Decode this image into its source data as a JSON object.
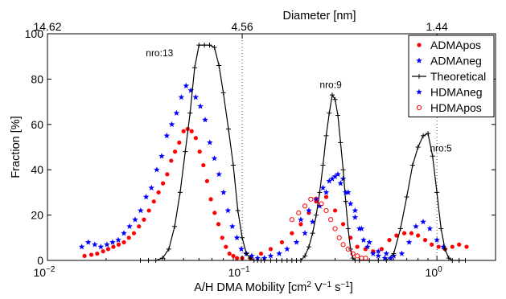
{
  "chart_data": {
    "type": "scatter",
    "x_scale": "log",
    "xlim": [
      0.01,
      2.0
    ],
    "ylim": [
      0,
      100
    ],
    "xlabel_main": "A/H DMA Mobility [cm",
    "xlabel_sup1": "2",
    "xlabel_mid1": " V",
    "xlabel_sup2": "−1",
    "xlabel_mid2": " s",
    "xlabel_sup3": "−1",
    "xlabel_end": "]",
    "ylabel": "Fraction [%]",
    "x2label": "Diameter [nm]",
    "y_ticks": [
      "0",
      "20",
      "40",
      "60",
      "80",
      "100"
    ],
    "x_ticks": [
      {
        "value": 0.01,
        "base": "10",
        "exp": "−2"
      },
      {
        "value": 0.1,
        "base": "10",
        "exp": "−1"
      },
      {
        "value": 1,
        "base": "10",
        "exp": "0"
      }
    ],
    "x2_ticks": [
      {
        "value": 0.01,
        "label": "14.62"
      },
      {
        "value": 0.1,
        "label": "4.56"
      },
      {
        "value": 1,
        "label": "1.44"
      }
    ],
    "grid_x": [
      0.1,
      1
    ],
    "annotations": [
      {
        "text": "nro:13",
        "x": 0.032,
        "y": 90
      },
      {
        "text": "nro:9",
        "x": 0.25,
        "y": 76
      },
      {
        "text": "nro:5",
        "x": 0.92,
        "y": 48
      }
    ],
    "legend_position": "top-right",
    "series": [
      {
        "name": "ADMApos",
        "color": "#ff0000",
        "marker": "dot",
        "x": [
          0.0155,
          0.0168,
          0.018,
          0.0193,
          0.0205,
          0.0218,
          0.0232,
          0.0247,
          0.0262,
          0.0278,
          0.0295,
          0.0313,
          0.0332,
          0.0352,
          0.0372,
          0.0392,
          0.0412,
          0.0432,
          0.0452,
          0.0475,
          0.05,
          0.0525,
          0.055,
          0.0578,
          0.0605,
          0.0632,
          0.066,
          0.069,
          0.0722,
          0.0755,
          0.079,
          0.0825,
          0.086,
          0.09,
          0.094,
          0.1,
          0.11,
          0.125,
          0.14,
          0.16,
          0.18,
          0.2,
          0.22,
          0.24,
          0.27,
          0.3,
          0.33,
          0.36,
          0.39,
          0.43,
          0.47,
          0.52,
          0.57,
          0.62,
          0.68,
          0.74,
          0.8,
          0.87,
          0.94,
          1.02,
          1.1,
          1.2,
          1.3,
          1.42
        ],
        "y": [
          2,
          2.5,
          3,
          4,
          5,
          6,
          7,
          8,
          10,
          12,
          15,
          18,
          22,
          26,
          30,
          34,
          38,
          44,
          48,
          52,
          57,
          58,
          57,
          54,
          48,
          42,
          35,
          27,
          21,
          16,
          10,
          6,
          3,
          2,
          1,
          1,
          1,
          3,
          5,
          8,
          12,
          16,
          21,
          26,
          28,
          22,
          16,
          10,
          6,
          5,
          4,
          5,
          9,
          11,
          12,
          12,
          11,
          9,
          7,
          6,
          5,
          6,
          7,
          6
        ]
      },
      {
        "name": "ADMAneg",
        "color": "#0000ff",
        "marker": "star",
        "x": [
          0.015,
          0.0162,
          0.0175,
          0.0188,
          0.0202,
          0.0216,
          0.0231,
          0.0247,
          0.0264,
          0.0282,
          0.0301,
          0.0321,
          0.0342,
          0.0364,
          0.0386,
          0.041,
          0.0435,
          0.046,
          0.0487,
          0.0515,
          0.0545,
          0.0577,
          0.061,
          0.0645,
          0.0682,
          0.072,
          0.076,
          0.0802,
          0.0845,
          0.089,
          0.094,
          0.099,
          0.105,
          0.112,
          0.12,
          0.13,
          0.14,
          0.155,
          0.17,
          0.19,
          0.21,
          0.23,
          0.25,
          0.27,
          0.29,
          0.31,
          0.33,
          0.35,
          0.38,
          0.41,
          0.45,
          0.5,
          0.55,
          0.6,
          0.66,
          0.72,
          0.78,
          0.85,
          0.92,
          1.0,
          1.08
        ],
        "y": [
          6,
          8,
          7,
          6,
          7,
          8,
          9,
          12,
          15,
          18,
          22,
          28,
          32,
          40,
          46,
          55,
          60,
          65,
          72,
          77,
          75,
          72,
          68,
          62,
          52,
          45,
          38,
          30,
          22,
          15,
          10,
          5,
          3,
          2,
          1,
          1,
          2,
          3,
          5,
          8,
          12,
          17,
          24,
          30,
          36,
          38,
          36,
          30,
          22,
          14,
          8,
          4,
          3,
          2,
          3,
          8,
          15,
          17,
          14,
          9,
          6
        ]
      },
      {
        "name": "Theoretical",
        "color": "#000000",
        "marker": "plus",
        "x": [
          0.03,
          0.033,
          0.036,
          0.039,
          0.042,
          0.045,
          0.048,
          0.051,
          0.054,
          0.057,
          0.06,
          0.064,
          0.068,
          0.072,
          0.076,
          0.08,
          0.085,
          0.09,
          0.095,
          0.1,
          0.105,
          0.11,
          0.115,
          0.12,
          0.125,
          0.13,
          0.14,
          0.15,
          0.16,
          0.17,
          0.18,
          0.19,
          0.2,
          0.21,
          0.22,
          0.23,
          0.24,
          0.25,
          0.26,
          0.27,
          0.28,
          0.29,
          0.3,
          0.31,
          0.32,
          0.33,
          0.34,
          0.35,
          0.36,
          0.37,
          0.38,
          0.4,
          0.45,
          0.5,
          0.55,
          0.6,
          0.65,
          0.7,
          0.75,
          0.8,
          0.85,
          0.9,
          0.95,
          1.0,
          1.05,
          1.1,
          1.15,
          1.2,
          1.3,
          1.4
        ],
        "y": [
          0,
          0,
          0,
          1,
          5,
          15,
          30,
          48,
          65,
          85,
          95,
          95,
          95,
          94,
          86,
          74,
          58,
          42,
          22,
          10,
          3,
          1,
          0,
          0,
          0,
          0,
          0,
          0,
          0,
          0,
          0,
          0,
          0,
          2,
          6,
          12,
          20,
          30,
          42,
          55,
          65,
          73,
          71,
          64,
          52,
          40,
          26,
          14,
          5,
          1,
          0,
          0,
          0,
          0,
          0,
          3,
          14,
          28,
          42,
          50,
          55,
          56,
          46,
          30,
          14,
          5,
          1,
          0,
          0,
          0
        ]
      },
      {
        "name": "HDMAneg",
        "color": "#0000ff",
        "marker": "star",
        "x": [
          0.2,
          0.22,
          0.24,
          0.26,
          0.28,
          0.3,
          0.32,
          0.34,
          0.36,
          0.38,
          0.4,
          0.42,
          0.44,
          0.47,
          0.5,
          0.54,
          0.58
        ],
        "y": [
          18,
          22,
          27,
          32,
          35,
          37,
          34,
          30,
          25,
          19,
          14,
          9,
          6,
          3,
          2,
          1,
          1
        ]
      },
      {
        "name": "HDMApos",
        "color": "#ff0000",
        "marker": "circle",
        "x": [
          0.18,
          0.195,
          0.21,
          0.225,
          0.24,
          0.255,
          0.27,
          0.285,
          0.3,
          0.315,
          0.33,
          0.35,
          0.37,
          0.39,
          0.41,
          0.43
        ],
        "y": [
          18,
          21,
          24,
          27,
          27,
          25,
          22,
          18,
          14,
          10,
          7,
          5,
          3,
          2,
          1,
          1
        ]
      }
    ]
  }
}
